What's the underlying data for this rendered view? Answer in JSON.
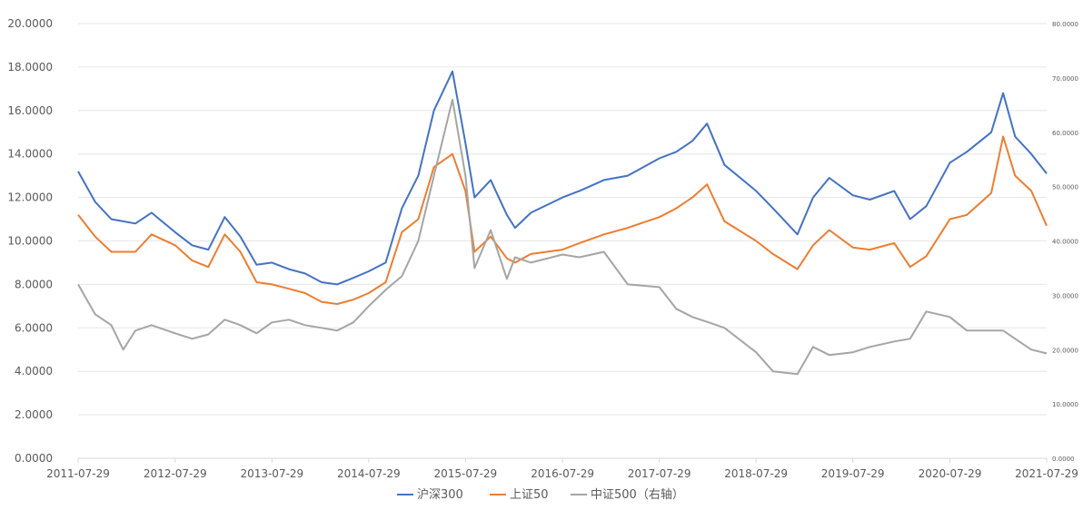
{
  "chart_data": {
    "type": "line",
    "title": "",
    "xlabel": "",
    "ylabel": "",
    "x_ticks": [
      "2011-07-29",
      "2012-07-29",
      "2013-07-29",
      "2014-07-29",
      "2015-07-29",
      "2016-07-29",
      "2017-07-29",
      "2018-07-29",
      "2019-07-29",
      "2020-07-29",
      "2021-07-29"
    ],
    "ylim_left": [
      0,
      20
    ],
    "yticks_left": [
      "0.0000",
      "2.0000",
      "4.0000",
      "6.0000",
      "8.0000",
      "10.0000",
      "12.0000",
      "14.0000",
      "16.0000",
      "18.0000",
      "20.0000"
    ],
    "ylim_right": [
      0,
      80
    ],
    "yticks_right": [
      "0.0000",
      "10.0000",
      "20.0000",
      "30.0000",
      "40.0000",
      "50.0000",
      "60.0000",
      "70.0000",
      "80.0000"
    ],
    "grid": true,
    "legend_position": "bottom",
    "series": [
      {
        "name": "沪深300",
        "axis": "left",
        "color": "#4472C4",
        "x": [
          "2011-07-29",
          "2011-10-01",
          "2011-12-01",
          "2012-03-01",
          "2012-05-01",
          "2012-07-29",
          "2012-10-01",
          "2012-12-01",
          "2013-02-01",
          "2013-04-01",
          "2013-06-01",
          "2013-07-29",
          "2013-10-01",
          "2013-12-01",
          "2014-02-01",
          "2014-04-01",
          "2014-06-01",
          "2014-07-29",
          "2014-10-01",
          "2014-12-01",
          "2015-02-01",
          "2015-04-01",
          "2015-06-10",
          "2015-07-29",
          "2015-09-01",
          "2015-11-01",
          "2016-01-01",
          "2016-02-01",
          "2016-04-01",
          "2016-07-29",
          "2016-10-01",
          "2017-01-01",
          "2017-04-01",
          "2017-07-29",
          "2017-10-01",
          "2017-12-01",
          "2018-01-25",
          "2018-04-01",
          "2018-07-29",
          "2018-10-01",
          "2019-01-01",
          "2019-03-01",
          "2019-05-01",
          "2019-07-29",
          "2019-10-01",
          "2020-01-01",
          "2020-03-01",
          "2020-05-01",
          "2020-07-29",
          "2020-10-01",
          "2021-01-01",
          "2021-02-15",
          "2021-04-01",
          "2021-06-01",
          "2021-07-29"
        ],
        "y": [
          13.2,
          11.8,
          11.0,
          10.8,
          11.3,
          10.4,
          9.8,
          9.6,
          11.1,
          10.2,
          8.9,
          9.0,
          8.7,
          8.5,
          8.1,
          8.0,
          8.3,
          8.6,
          9.0,
          11.5,
          13.0,
          16.0,
          17.8,
          14.5,
          12.0,
          12.8,
          11.2,
          10.6,
          11.3,
          12.0,
          12.3,
          12.8,
          13.0,
          13.8,
          14.1,
          14.6,
          15.4,
          13.5,
          12.3,
          11.5,
          10.3,
          12.0,
          12.9,
          12.1,
          11.9,
          12.3,
          11.0,
          11.6,
          13.6,
          14.1,
          15.0,
          16.8,
          14.8,
          14.0,
          13.1
        ]
      },
      {
        "name": "上证50",
        "axis": "left",
        "color": "#ED7D31",
        "x": [
          "2011-07-29",
          "2011-10-01",
          "2011-12-01",
          "2012-03-01",
          "2012-05-01",
          "2012-07-29",
          "2012-10-01",
          "2012-12-01",
          "2013-02-01",
          "2013-04-01",
          "2013-06-01",
          "2013-07-29",
          "2013-10-01",
          "2013-12-01",
          "2014-02-01",
          "2014-04-01",
          "2014-06-01",
          "2014-07-29",
          "2014-10-01",
          "2014-12-01",
          "2015-02-01",
          "2015-04-01",
          "2015-06-10",
          "2015-07-29",
          "2015-09-01",
          "2015-11-01",
          "2016-01-01",
          "2016-02-01",
          "2016-04-01",
          "2016-07-29",
          "2016-10-01",
          "2017-01-01",
          "2017-04-01",
          "2017-07-29",
          "2017-10-01",
          "2017-12-01",
          "2018-01-25",
          "2018-04-01",
          "2018-07-29",
          "2018-10-01",
          "2019-01-01",
          "2019-03-01",
          "2019-05-01",
          "2019-07-29",
          "2019-10-01",
          "2020-01-01",
          "2020-03-01",
          "2020-05-01",
          "2020-07-29",
          "2020-10-01",
          "2021-01-01",
          "2021-02-15",
          "2021-04-01",
          "2021-06-01",
          "2021-07-29"
        ],
        "y": [
          11.2,
          10.2,
          9.5,
          9.5,
          10.3,
          9.8,
          9.1,
          8.8,
          10.3,
          9.5,
          8.1,
          8.0,
          7.8,
          7.6,
          7.2,
          7.1,
          7.3,
          7.6,
          8.1,
          10.4,
          11.0,
          13.4,
          14.0,
          12.3,
          9.5,
          10.2,
          9.2,
          9.0,
          9.4,
          9.6,
          9.9,
          10.3,
          10.6,
          11.1,
          11.5,
          12.0,
          12.6,
          10.9,
          10.0,
          9.4,
          8.7,
          9.8,
          10.5,
          9.7,
          9.6,
          9.9,
          8.8,
          9.3,
          11.0,
          11.2,
          12.2,
          14.8,
          13.0,
          12.3,
          10.7
        ]
      },
      {
        "name": "中证500（右轴）",
        "axis": "right",
        "color": "#A5A5A5",
        "x": [
          "2011-07-29",
          "2011-10-01",
          "2011-12-01",
          "2012-01-15",
          "2012-03-01",
          "2012-05-01",
          "2012-07-29",
          "2012-10-01",
          "2012-12-01",
          "2013-02-01",
          "2013-04-01",
          "2013-06-01",
          "2013-07-29",
          "2013-10-01",
          "2013-12-01",
          "2014-02-01",
          "2014-04-01",
          "2014-06-01",
          "2014-07-29",
          "2014-10-01",
          "2014-12-01",
          "2015-02-01",
          "2015-04-01",
          "2015-06-10",
          "2015-07-29",
          "2015-09-01",
          "2015-11-01",
          "2016-01-01",
          "2016-02-01",
          "2016-04-01",
          "2016-07-29",
          "2016-10-01",
          "2017-01-01",
          "2017-04-01",
          "2017-07-29",
          "2017-10-01",
          "2017-12-01",
          "2018-02-01",
          "2018-04-01",
          "2018-07-29",
          "2018-10-01",
          "2019-01-01",
          "2019-03-01",
          "2019-05-01",
          "2019-07-29",
          "2019-10-01",
          "2020-01-01",
          "2020-03-01",
          "2020-05-01",
          "2020-07-29",
          "2020-10-01",
          "2021-01-01",
          "2021-02-15",
          "2021-04-01",
          "2021-06-01",
          "2021-07-29"
        ],
        "y": [
          32.0,
          26.5,
          24.5,
          20.0,
          23.5,
          24.5,
          23.0,
          22.0,
          22.8,
          25.5,
          24.5,
          23.0,
          25.0,
          25.5,
          24.5,
          24.0,
          23.5,
          25.0,
          28.0,
          31.0,
          33.5,
          40.0,
          52.0,
          66.0,
          52.0,
          35.0,
          42.0,
          33.0,
          37.0,
          36.0,
          37.5,
          37.0,
          38.0,
          32.0,
          31.5,
          27.5,
          26.0,
          25.0,
          24.0,
          19.5,
          16.0,
          15.5,
          20.5,
          19.0,
          19.5,
          20.5,
          21.5,
          22.0,
          27.0,
          26.0,
          23.5,
          23.5,
          23.5,
          22.0,
          20.0,
          19.3
        ]
      }
    ]
  }
}
